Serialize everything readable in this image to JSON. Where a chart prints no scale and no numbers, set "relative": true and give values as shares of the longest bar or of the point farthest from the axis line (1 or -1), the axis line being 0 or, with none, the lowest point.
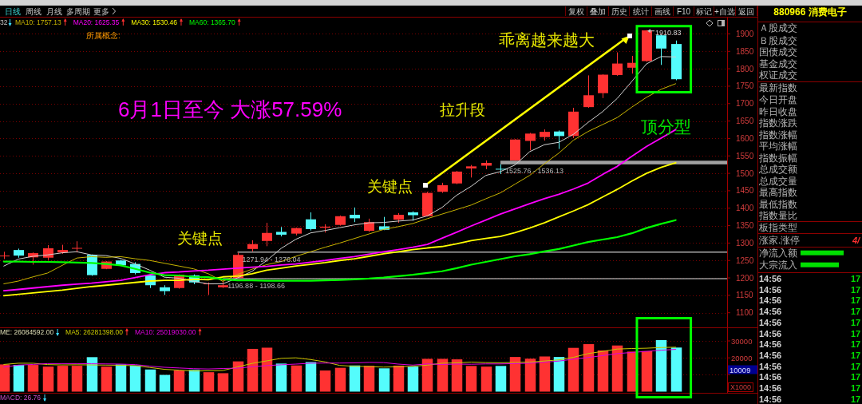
{
  "chart_data": [
    {
      "type": "other",
      "annotations": [
        "日线",
        "周线",
        "月线",
        "多周期",
        "更多",
        "复权",
        "叠加",
        "历史",
        "统计",
        "画线",
        "F10",
        "标记",
        "+自选",
        "返回"
      ]
    },
    {
      "type": "candlestick",
      "categories": [
        null,
        null,
        null,
        null,
        null,
        null,
        null,
        null,
        null,
        null,
        null,
        null,
        null,
        null,
        null,
        null,
        null,
        null,
        null,
        null,
        null,
        null,
        null,
        null,
        null,
        null,
        null,
        null,
        null,
        null,
        null,
        null,
        null,
        null,
        null,
        null,
        null,
        null,
        null,
        null,
        null,
        null,
        null,
        null,
        null,
        null,
        null
      ],
      "ohlc": [
        [
          1263,
          1275,
          1254,
          1264
        ],
        [
          1280,
          1284,
          1258,
          1264
        ],
        [
          1259,
          1273,
          1238,
          1271
        ],
        [
          1258,
          1294,
          1251,
          1285
        ],
        [
          1273,
          1295,
          1269,
          1280
        ],
        [
          1284,
          1305,
          1273,
          1286
        ],
        [
          1266,
          1267,
          1206,
          1208
        ],
        [
          1226,
          1248,
          1225,
          1247
        ],
        [
          1250,
          1252,
          1234,
          1236
        ],
        [
          1240,
          1245,
          1210,
          1214
        ],
        [
          1207,
          1209,
          1171,
          1179
        ],
        [
          1173,
          1179,
          1151,
          1162
        ],
        [
          1171,
          1210,
          1169,
          1209
        ],
        [
          1207,
          1210,
          1182,
          1187
        ],
        [
          1182,
          1187,
          1151,
          1184
        ],
        [
          1173,
          1196.88,
          1171,
          1179
        ],
        [
          1200,
          1271.94,
          1198.66,
          1266
        ],
        [
          1283,
          1308,
          1276.04,
          1297
        ],
        [
          1306,
          1358,
          1291,
          1329
        ],
        [
          1332,
          1346,
          1319,
          1324
        ],
        [
          1327,
          1344,
          1322,
          1343
        ],
        [
          1368,
          1388,
          1336,
          1340
        ],
        [
          1344,
          1354,
          1330,
          1347
        ],
        [
          1352,
          1379,
          1350,
          1377
        ],
        [
          1381,
          1402,
          1360,
          1371
        ],
        [
          1335,
          1370,
          1332,
          1360
        ],
        [
          1348,
          1375,
          1337,
          1338
        ],
        [
          1367,
          1386,
          1358,
          1381
        ],
        [
          1388,
          1391,
          1364,
          1380
        ],
        [
          1377,
          1447,
          1376,
          1444
        ],
        [
          1447,
          1473,
          1444,
          1466
        ],
        [
          1471,
          1507,
          1469,
          1505
        ],
        [
          1514,
          1524,
          1488,
          1520
        ],
        [
          1522,
          1537,
          1512,
          1530
        ],
        [
          1513,
          1525.76,
          1498,
          1511
        ],
        [
          1537,
          1598,
          1536.13,
          1597
        ],
        [
          1593,
          1616,
          1566,
          1614
        ],
        [
          1604,
          1626,
          1594,
          1619
        ],
        [
          1620,
          1623,
          1570,
          1607
        ],
        [
          1607,
          1688,
          1601,
          1677
        ],
        [
          1690,
          1781,
          1688,
          1724
        ],
        [
          1730,
          1784,
          1716,
          1783
        ],
        [
          1782,
          1847,
          1780,
          1815
        ],
        [
          1803,
          1837,
          1786,
          1817
        ],
        [
          1822,
          1910.83,
          1820,
          1910
        ],
        [
          1896,
          1898,
          1811,
          1858
        ],
        [
          1871,
          1881,
          1767,
          1770
        ]
      ],
      "colors": [
        "#ff3232",
        "#54fcfc",
        "#ff3232",
        "#ff3232",
        "#ff3232",
        "#ff3232",
        "#54fcfc",
        "#ff3232",
        "#54fcfc",
        "#54fcfc",
        "#54fcfc",
        "#54fcfc",
        "#ff3232",
        "#54fcfc",
        "#ff3232",
        "#ff3232",
        "#ff3232",
        "#ff3232",
        "#ff3232",
        "#54fcfc",
        "#ff3232",
        "#54fcfc",
        "#ff3232",
        "#ff3232",
        "#54fcfc",
        "#ff3232",
        "#54fcfc",
        "#ff3232",
        "#54fcfc",
        "#ff3232",
        "#ff3232",
        "#ff3232",
        "#ff3232",
        "#ff3232",
        "#54fcfc",
        "#ff3232",
        "#ff3232",
        "#ff3232",
        "#54fcfc",
        "#ff3232",
        "#ff3232",
        "#ff3232",
        "#ff3232",
        "#ff3232",
        "#ff3232",
        "#54fcfc",
        "#54fcfc"
      ],
      "series": [
        {
          "type": "line",
          "color": "#d2d2d2",
          "values": [
            1234,
            1254,
            1262,
            1266,
            1272,
            1275,
            1266,
            1264,
            1256,
            1240,
            1222,
            1202,
            1199,
            1190,
            1183,
            1183,
            1200,
            1219,
            1250,
            1285,
            1311,
            1329,
            1336,
            1344,
            1352,
            1358,
            1359,
            1363,
            1366,
            1378,
            1402,
            1437,
            1463,
            1494,
            1505,
            1524,
            1562,
            1582,
            1589,
            1612,
            1646,
            1677,
            1715,
            1764,
            1814,
            1835,
            1834
          ]
        },
        {
          "type": "line",
          "name": "MA10: 1757.13",
          "color": "#c8b400",
          "values": [
            1183,
            1191,
            1203,
            1214,
            1236,
            1257,
            1261,
            1259,
            1261,
            1255,
            1250,
            1242,
            1234,
            1226,
            1212,
            1190,
            1210,
            1225,
            1238,
            1247,
            1262,
            1275,
            1288,
            1300,
            1313,
            1326,
            1339,
            1347,
            1356,
            1370,
            1383,
            1396,
            1409,
            1427,
            1444,
            1469,
            1494,
            1527,
            1558,
            1595,
            1620,
            1640,
            1660,
            1690,
            1718,
            1741,
            1757.13
          ]
        },
        {
          "type": "line",
          "name": "MA20: 1625.35",
          "color": "#ff00ff",
          "values": [
            1163,
            1167,
            1171,
            1175,
            1179,
            1182,
            1185,
            1189,
            1193,
            1201,
            1209,
            1215,
            1217,
            1220,
            1222,
            1225,
            1228,
            1231,
            1233,
            1237,
            1240,
            1245,
            1250,
            1256,
            1261,
            1268,
            1275,
            1281,
            1288,
            1296,
            1314,
            1331,
            1349,
            1366,
            1383,
            1398,
            1413,
            1427,
            1440,
            1455,
            1472,
            1497,
            1520,
            1549,
            1577,
            1601,
            1625.35
          ]
        },
        {
          "type": "line",
          "name": "MA30: 1530.46",
          "color": "#ffff00",
          "values": [
            1149,
            1153,
            1157,
            1161,
            1165,
            1170,
            1175,
            1179,
            1183,
            1187,
            1191,
            1193,
            1193,
            1196,
            1195,
            1203,
            1205,
            1212,
            1222,
            1228,
            1234,
            1239,
            1244,
            1250,
            1255,
            1262,
            1269,
            1275,
            1281,
            1286,
            1290,
            1298,
            1307,
            1313,
            1319,
            1330,
            1343,
            1358,
            1375,
            1392,
            1410,
            1432,
            1454,
            1478,
            1500,
            1517,
            1530.46
          ]
        },
        {
          "type": "line",
          "name": "MA60: 1365.70",
          "color": "#00ff00",
          "values": [
            1247,
            1247,
            1246,
            1246,
            1245,
            1244,
            1243,
            1240,
            1236,
            1226,
            1215,
            1208,
            1207,
            1203,
            1202,
            1196,
            1193,
            1193,
            1192,
            1192,
            1192,
            1192,
            1193,
            1194,
            1196,
            1198,
            1201,
            1205,
            1209,
            1214,
            1219,
            1228,
            1238,
            1246,
            1254,
            1262,
            1268,
            1276,
            1283,
            1293,
            1303,
            1310,
            1317,
            1328,
            1343,
            1355,
            1365.7
          ]
        }
      ],
      "ylim": [
        1057,
        1948
      ],
      "yticks": [
        1100,
        1150,
        1200,
        1250,
        1300,
        1350,
        1400,
        1450,
        1500,
        1550,
        1600,
        1650,
        1700,
        1750,
        1800,
        1850,
        1900
      ],
      "grid": "y",
      "legend": "top left",
      "bands": [
        {
          "axis": "y",
          "from": 1196.88,
          "to": 1198.66,
          "label": "1196.88 - 1198.66",
          "color": "#909090"
        },
        {
          "axis": "y",
          "from": 1271.94,
          "to": 1276.04,
          "label": "1271.94 - 1276.04",
          "color": "#909090"
        },
        {
          "axis": "y",
          "from": 1525.76,
          "to": 1536.13,
          "label": "1525.76 - 1536.13",
          "color": "#a0a0a0"
        }
      ],
      "annotations": [
        "32",
        "所属概念:",
        "6月1日至今 大涨57.59%",
        "拉升段",
        "乖离越来越大",
        "关键点",
        "关键点",
        "顶分型",
        "1910.83"
      ]
    },
    {
      "type": "bar",
      "categories": [
        null,
        null,
        null,
        null,
        null,
        null,
        null,
        null,
        null,
        null,
        null,
        null,
        null,
        null,
        null,
        null,
        null,
        null,
        null,
        null,
        null,
        null,
        null,
        null,
        null,
        null,
        null,
        null,
        null,
        null,
        null,
        null,
        null,
        null,
        null,
        null,
        null,
        null,
        null,
        null,
        null,
        null,
        null,
        null,
        null,
        null,
        null
      ],
      "series": [
        {
          "colors": [
            "#ff3232",
            "#54fcfc",
            "#ff3232",
            "#ff3232",
            "#ff3232",
            "#ff3232",
            "#54fcfc",
            "#ff3232",
            "#54fcfc",
            "#54fcfc",
            "#54fcfc",
            "#54fcfc",
            "#ff3232",
            "#54fcfc",
            "#ff3232",
            "#ff3232",
            "#ff3232",
            "#ff3232",
            "#ff3232",
            "#54fcfc",
            "#ff3232",
            "#54fcfc",
            "#ff3232",
            "#ff3232",
            "#54fcfc",
            "#ff3232",
            "#54fcfc",
            "#ff3232",
            "#54fcfc",
            "#ff3232",
            "#ff3232",
            "#ff3232",
            "#ff3232",
            "#ff3232",
            "#54fcfc",
            "#ff3232",
            "#ff3232",
            "#ff3232",
            "#54fcfc",
            "#ff3232",
            "#ff3232",
            "#ff3232",
            "#ff3232",
            "#ff3232",
            "#ff3232",
            "#54fcfc",
            "#54fcfc"
          ],
          "values": [
            16100,
            15800,
            15800,
            14800,
            15300,
            15300,
            20400,
            14800,
            16100,
            15500,
            13100,
            9900,
            12500,
            12900,
            11500,
            10900,
            17900,
            25300,
            26000,
            16600,
            15500,
            17500,
            12500,
            14100,
            15500,
            15300,
            13800,
            15400,
            14800,
            19400,
            19400,
            19100,
            15200,
            14800,
            15200,
            20500,
            19500,
            20800,
            20500,
            25900,
            28100,
            24400,
            27300,
            23700,
            24000,
            30500,
            26084.592
          ]
        },
        {
          "type": "line",
          "name": "MA5: 26281398.00",
          "color": "#c8c800",
          "values": [
            16100,
            16800,
            16800,
            16000,
            15800,
            15900,
            15800,
            15700,
            15600,
            15300,
            14300,
            13200,
            12700,
            12200,
            12300,
            12500,
            14600,
            16700,
            18200,
            19700,
            20000,
            19000,
            17600,
            15500,
            15000,
            14800,
            14500,
            14700,
            15000,
            15700,
            16800,
            17000,
            17500,
            17200,
            17100,
            17300,
            17500,
            18100,
            18800,
            20300,
            22500,
            23800,
            25200,
            25500,
            25700,
            26100,
            26281.398
          ]
        },
        {
          "type": "line",
          "name": "MA10: 25019030.00",
          "color": "#e000e0",
          "values": [
            14500,
            15700,
            16100,
            16600,
            16600,
            16600,
            16500,
            16400,
            16300,
            16000,
            15100,
            14400,
            14000,
            13600,
            13400,
            13700,
            13900,
            14700,
            15400,
            15900,
            16300,
            16800,
            16900,
            16900,
            17000,
            17300,
            17200,
            16300,
            15700,
            16400,
            16100,
            16300,
            16200,
            16400,
            16400,
            16600,
            16800,
            17400,
            18100,
            19200,
            20200,
            21300,
            22500,
            23200,
            23800,
            24500,
            25019.03
          ]
        }
      ],
      "ylim": [
        0,
        37800
      ],
      "yticks": [
        {
          "value": 10000,
          "label": null
        },
        20000,
        30000
      ],
      "ylabel": "X1000",
      "grid": "y",
      "legend": "top left",
      "annotations": [
        "ME: 26084592.00",
        "10009",
        "MACD: 26.76"
      ]
    },
    {
      "type": "other",
      "title": "880966 消费电子",
      "annotations": [
        "Ａ股成交",
        "Ｂ股成交",
        "国债成交",
        "基金成交",
        "权证成交",
        "最新指数",
        "今日开盘",
        "昨日收盘",
        "指数涨跌",
        "指数涨幅",
        "平均涨幅",
        "指数振幅",
        "总成交额",
        "总成交量",
        "最高指数",
        "最低指数",
        "指数量比",
        "板指类型",
        "涨家.涨停",
        "4/"
      ]
    },
    {
      "type": "bar",
      "orientation": "horizontal",
      "relative": true,
      "categories": [
        "净流入额",
        "大宗流入"
      ],
      "values": [
        1,
        0.89
      ],
      "color": "#00e000"
    },
    {
      "type": "other",
      "annotations": [
        "14:56",
        "14:56",
        "14:56",
        "14:56",
        "14:56",
        "14:56",
        "14:56",
        "14:56",
        "14:56",
        "14:56",
        "14:56",
        "14:56",
        "17",
        "17",
        "17",
        "17",
        "17",
        "17",
        "17",
        "17",
        "17",
        "17",
        "17",
        "17"
      ]
    }
  ]
}
